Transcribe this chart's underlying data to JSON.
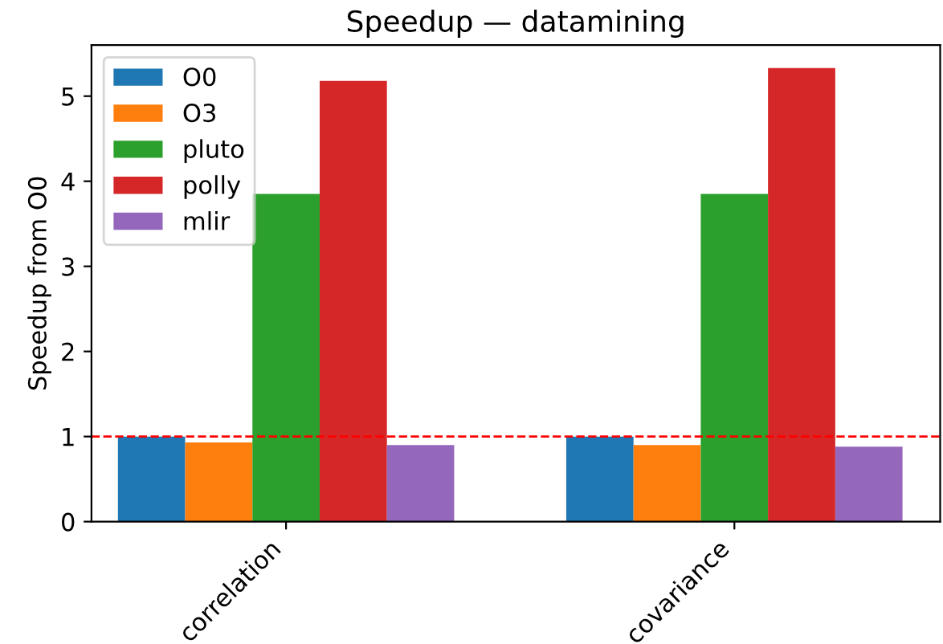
{
  "chart_data": {
    "type": "bar",
    "title": "Speedup — datamining",
    "ylabel": "Speedup from O0",
    "categories": [
      "correlation",
      "covariance"
    ],
    "series": [
      {
        "name": "O0",
        "color": "#1f77b4",
        "values": [
          1.0,
          1.0
        ]
      },
      {
        "name": "O3",
        "color": "#ff7f0e",
        "values": [
          0.93,
          0.9
        ]
      },
      {
        "name": "pluto",
        "color": "#2ca02c",
        "values": [
          3.85,
          3.85
        ]
      },
      {
        "name": "polly",
        "color": "#d62728",
        "values": [
          5.18,
          5.33
        ]
      },
      {
        "name": "mlir",
        "color": "#9467bd",
        "values": [
          0.9,
          0.88
        ]
      }
    ],
    "ylim": [
      0,
      5.6
    ],
    "yticks": [
      0,
      1,
      2,
      3,
      4,
      5
    ],
    "ref_lines": [
      {
        "axis": "y",
        "value": 1,
        "color": "#ff0000",
        "line_style": "dashed"
      }
    ],
    "legend": "top left",
    "grid": false
  }
}
